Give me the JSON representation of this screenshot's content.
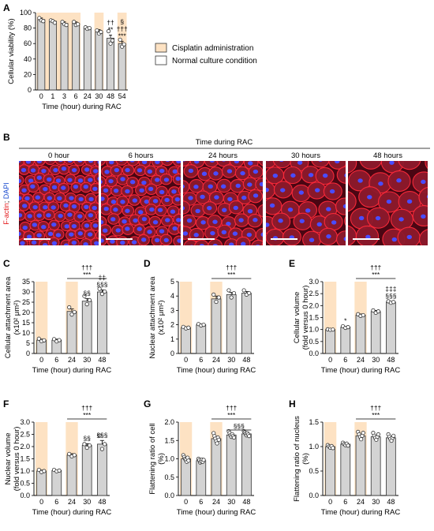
{
  "panels": {
    "A": {
      "letter": "A"
    },
    "B": {
      "letter": "B"
    },
    "C": {
      "letter": "C"
    },
    "D": {
      "letter": "D"
    },
    "E": {
      "letter": "E"
    },
    "F": {
      "letter": "F"
    },
    "G": {
      "letter": "G"
    },
    "H": {
      "letter": "H"
    }
  },
  "colors": {
    "shade": "#fde2c3",
    "bar": "#d3d3d3",
    "bar_edge": "#333333",
    "scale_bar": "#ffffff"
  },
  "legend": {
    "items": [
      "Cisplatin administration",
      "Normal culture condition"
    ]
  },
  "micrographs": {
    "header": "Time during RAC",
    "side_label": [
      "F-actin",
      "; ",
      "DAPI"
    ],
    "side_colors": [
      "#e31a1c",
      "#000000",
      "#1f4fd0"
    ],
    "labels": [
      "0 hour",
      "6 hours",
      "24 hours",
      "30 hours",
      "48 hours"
    ]
  },
  "chart_data": [
    {
      "id": "A",
      "type": "bar",
      "categories": [
        "0",
        "1",
        "3",
        "6",
        "24",
        "30",
        "48",
        "54"
      ],
      "values": [
        91,
        89,
        86,
        86,
        80,
        75,
        67,
        60
      ],
      "errors": [
        2,
        1.5,
        2,
        2,
        1.5,
        3,
        4,
        3
      ],
      "points": [
        [
          93,
          90,
          89
        ],
        [
          90,
          89,
          87
        ],
        [
          88,
          85,
          84
        ],
        [
          88,
          84,
          85
        ],
        [
          81,
          79,
          80
        ],
        [
          77,
          73,
          75
        ],
        [
          76,
          60,
          64
        ],
        [
          65,
          56,
          59
        ]
      ],
      "ylim": [
        0,
        100
      ],
      "yticks": [
        0,
        20,
        40,
        60,
        80,
        100
      ],
      "xlabel": "Time (hour) during RAC",
      "ylabel": [
        "Cellular viability (%)"
      ],
      "shaded": [
        [
          0,
          3
        ],
        [
          5,
          5
        ],
        [
          7,
          7
        ]
      ],
      "annotations": [
        {
          "text": "††",
          "at": 6,
          "row": 0
        },
        {
          "text": "**",
          "at": 6,
          "row": 1
        },
        {
          "text": "§",
          "at": 7,
          "row": 0
        },
        {
          "text": "†††",
          "at": 7,
          "row": 1
        },
        {
          "text": "***",
          "at": 7,
          "row": 2
        }
      ]
    },
    {
      "id": "C",
      "type": "bar",
      "categories": [
        "0",
        "6",
        "24",
        "30",
        "48"
      ],
      "values": [
        6.5,
        6.5,
        20.5,
        25.5,
        30
      ],
      "errors": [
        0.5,
        0.5,
        1.2,
        1.3,
        1.0
      ],
      "points": [
        [
          7.2,
          6.0,
          6.4
        ],
        [
          7.0,
          5.9,
          6.5
        ],
        [
          22.5,
          19,
          20.2
        ],
        [
          28,
          24,
          26
        ],
        [
          31.5,
          29,
          30.2
        ]
      ],
      "ylim": [
        0,
        35
      ],
      "yticks": [
        0,
        5,
        10,
        15,
        20,
        25,
        30,
        35
      ],
      "xlabel": "Time (hour) during RAC",
      "ylabel": [
        "Cellular attachment area",
        "(x10² μm²)"
      ],
      "shaded": [
        [
          0,
          0
        ],
        [
          2,
          2
        ]
      ],
      "bracket": {
        "from": 2,
        "to": 4,
        "labels": [
          "†††",
          "***"
        ]
      },
      "annotations": [
        {
          "text": "§§",
          "at": 3,
          "row": 0
        },
        {
          "text": "‡‡",
          "at": 4,
          "row": 0
        },
        {
          "text": "§§§",
          "at": 4,
          "row": 1
        }
      ]
    },
    {
      "id": "D",
      "type": "bar",
      "categories": [
        "0",
        "6",
        "24",
        "30",
        "48"
      ],
      "values": [
        1.8,
        2.0,
        3.8,
        4.1,
        4.2
      ],
      "errors": [
        0.05,
        0.06,
        0.2,
        0.15,
        0.12
      ],
      "points": [
        [
          1.85,
          1.75,
          1.8
        ],
        [
          2.05,
          1.95,
          2.0
        ],
        [
          4.1,
          3.6,
          3.9
        ],
        [
          4.4,
          3.9,
          4.2
        ],
        [
          4.4,
          4.1,
          4.2
        ]
      ],
      "ylim": [
        0,
        5
      ],
      "yticks": [
        0,
        1,
        2,
        3,
        4,
        5
      ],
      "xlabel": "Time (hour) during RAC",
      "ylabel": [
        "Nuclear attachment area",
        "(x10² μm²)"
      ],
      "shaded": [
        [
          0,
          0
        ],
        [
          2,
          2
        ]
      ],
      "bracket": {
        "from": 2,
        "to": 4,
        "labels": [
          "†††",
          "***"
        ]
      },
      "annotations": []
    },
    {
      "id": "E",
      "type": "bar",
      "categories": [
        "0",
        "6",
        "24",
        "30",
        "48"
      ],
      "values": [
        1.0,
        1.1,
        1.6,
        1.75,
        2.15
      ],
      "errors": [
        0.02,
        0.04,
        0.05,
        0.05,
        0.03
      ],
      "points": [
        [
          1.01,
          0.99,
          1.0
        ],
        [
          1.14,
          1.07,
          1.1
        ],
        [
          1.64,
          1.57,
          1.6
        ],
        [
          1.8,
          1.7,
          1.76
        ],
        [
          2.18,
          2.12,
          2.15
        ]
      ],
      "ylim": [
        0,
        3.0
      ],
      "yticks": [
        0,
        0.5,
        1.0,
        1.5,
        2.0,
        2.5,
        3.0
      ],
      "xlabel": "Time (hour) during RAC",
      "ylabel": [
        "Cellular volume",
        "(fold versus 0 hour)"
      ],
      "shaded": [
        [
          0,
          0
        ],
        [
          2,
          2
        ]
      ],
      "bracket": {
        "from": 2,
        "to": 4,
        "labels": [
          "†††",
          "***"
        ]
      },
      "annotations": [
        {
          "text": "*",
          "at": 1,
          "row": 0
        },
        {
          "text": "‡‡‡",
          "at": 4,
          "row": 0
        },
        {
          "text": "§§§",
          "at": 4,
          "row": 1
        }
      ]
    },
    {
      "id": "F",
      "type": "bar",
      "categories": [
        "0",
        "6",
        "24",
        "30",
        "48"
      ],
      "values": [
        1.0,
        1.02,
        1.65,
        2.05,
        2.1
      ],
      "errors": [
        0.04,
        0.03,
        0.06,
        0.07,
        0.15
      ],
      "points": [
        [
          1.05,
          0.96,
          1.0
        ],
        [
          1.05,
          0.99,
          1.02
        ],
        [
          1.7,
          1.6,
          1.65
        ],
        [
          2.1,
          1.95,
          2.05
        ],
        [
          2.45,
          1.9,
          2.1
        ]
      ],
      "ylim": [
        0,
        3.0
      ],
      "yticks": [
        0,
        0.5,
        1.0,
        1.5,
        2.0,
        2.5,
        3.0
      ],
      "xlabel": "Time (hour) during RAC",
      "ylabel": [
        "Nuclear volume",
        "(fold versus 0 hour)"
      ],
      "shaded": [
        [
          0,
          0
        ],
        [
          2,
          2
        ]
      ],
      "bracket": {
        "from": 2,
        "to": 4,
        "labels": [
          "†††",
          "***"
        ]
      },
      "annotations": [
        {
          "text": "§§",
          "at": 3,
          "row": 0
        },
        {
          "text": "§§§",
          "at": 4,
          "row": 0
        }
      ]
    },
    {
      "id": "G",
      "type": "bar",
      "categories": [
        "0",
        "6",
        "24",
        "30",
        "48"
      ],
      "values": [
        1.0,
        0.95,
        1.55,
        1.65,
        1.68
      ],
      "errors": [
        0.03,
        0.03,
        0.04,
        0.04,
        0.03
      ],
      "points": [
        [
          1.1,
          1.05,
          1.0,
          0.97,
          0.92,
          1.03,
          0.95
        ],
        [
          1.0,
          0.96,
          0.9,
          0.93,
          0.98,
          0.92,
          0.97
        ],
        [
          1.7,
          1.62,
          1.55,
          1.48,
          1.42,
          1.58,
          1.52
        ],
        [
          1.75,
          1.7,
          1.64,
          1.6,
          1.67,
          1.62,
          1.58
        ],
        [
          1.75,
          1.72,
          1.68,
          1.64,
          1.7,
          1.66,
          1.62
        ]
      ],
      "ylim": [
        0,
        2.0
      ],
      "yticks": [
        0,
        0.5,
        1.0,
        1.5,
        2.0
      ],
      "xlabel": "Time (hour) during RAC",
      "ylabel": [
        "Flattening ratio of cell",
        "(%)"
      ],
      "shaded": [
        [
          0,
          0
        ],
        [
          2,
          2
        ]
      ],
      "bracket": {
        "from": 2,
        "to": 4,
        "labels": [
          "†††",
          "***"
        ]
      },
      "bracket2": {
        "from": 3,
        "to": 4,
        "labels": [
          "§§§"
        ]
      },
      "annotations": []
    },
    {
      "id": "H",
      "type": "bar",
      "categories": [
        "0",
        "6",
        "24",
        "30",
        "48"
      ],
      "values": [
        1.0,
        1.05,
        1.22,
        1.2,
        1.18
      ],
      "errors": [
        0.02,
        0.02,
        0.03,
        0.03,
        0.02
      ],
      "points": [
        [
          1.03,
          1.0,
          0.98,
          1.01,
          0.97
        ],
        [
          1.08,
          1.05,
          1.03,
          1.06,
          1.02
        ],
        [
          1.3,
          1.25,
          1.2,
          1.15,
          1.22,
          1.28
        ],
        [
          1.28,
          1.22,
          1.18,
          1.14,
          1.2,
          1.25
        ],
        [
          1.25,
          1.2,
          1.16,
          1.12,
          1.18,
          1.22
        ]
      ],
      "ylim": [
        0,
        1.5
      ],
      "yticks": [
        0,
        0.5,
        1.0,
        1.5
      ],
      "xlabel": "Time (hour) during RAC",
      "ylabel": [
        "Flattening ratio of nucleus",
        "(%)"
      ],
      "shaded": [
        [
          0,
          0
        ],
        [
          2,
          2
        ]
      ],
      "bracket": {
        "from": 2,
        "to": 4,
        "labels": [
          "†††",
          "***"
        ]
      },
      "annotations": []
    }
  ]
}
